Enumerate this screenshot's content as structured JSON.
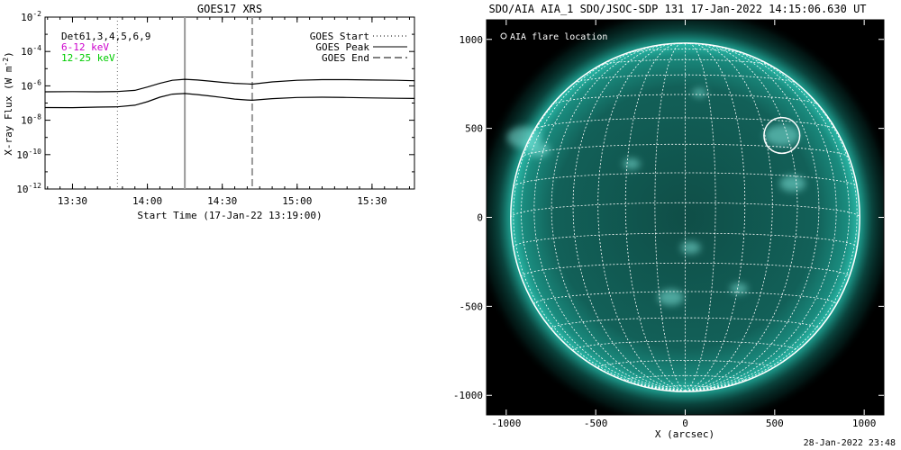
{
  "goes": {
    "title": "GOES17 XRS",
    "ylabel_main": "X-ray Flux (W m",
    "ylabel_sup": "-2",
    "ylabel_close": ")",
    "xlabel": "Start Time (17-Jan-22 13:19:00)",
    "legend_left": [
      {
        "text": "Det61,3,4,5,6,9",
        "color": "#000000"
      },
      {
        "text": "6-12 keV",
        "color": "#cc00cc"
      },
      {
        "text": "12-25 keV",
        "color": "#00cc00"
      }
    ],
    "legend_right": [
      {
        "text": "GOES Start",
        "style": "dotted"
      },
      {
        "text": "GOES Peak",
        "style": "solid"
      },
      {
        "text": "GOES End",
        "style": "dashed"
      }
    ]
  },
  "aia": {
    "title": "SDO/AIA AIA_1 SDO/JSOC-SDP 131 17-Jan-2022 14:15:06.630 UT",
    "xlabel": "X (arcsec)",
    "legend": "AIA flare location",
    "disk_color": "#1a9a8a",
    "background_color": "#000000",
    "grid_color": "#ffffff"
  },
  "timestamp": "28-Jan-2022 23:48",
  "chart_data": [
    {
      "type": "line",
      "title": "GOES17 XRS",
      "xlabel": "Start Time (17-Jan-22 13:19:00)",
      "ylabel": "X-ray Flux (W m^-2)",
      "yscale": "log",
      "ylim": [
        1e-12,
        0.01
      ],
      "xlim": [
        "13:19",
        "15:47"
      ],
      "xticks": [
        "13:30",
        "14:00",
        "14:30",
        "15:00",
        "15:30"
      ],
      "yticks": [
        {
          "base": "10",
          "exp": "-2",
          "value": 0.01
        },
        {
          "base": "10",
          "exp": "-4",
          "value": 0.0001
        },
        {
          "base": "10",
          "exp": "-6",
          "value": 1e-06
        },
        {
          "base": "10",
          "exp": "-8",
          "value": 1e-08
        },
        {
          "base": "10",
          "exp": "-10",
          "value": 1e-10
        },
        {
          "base": "10",
          "exp": "-12",
          "value": 1e-12
        }
      ],
      "markers": [
        {
          "label": "GOES Start",
          "time": "13:48",
          "style": "dotted"
        },
        {
          "label": "GOES Peak",
          "time": "14:15",
          "style": "solid"
        },
        {
          "label": "GOES End",
          "time": "14:42",
          "style": "dashed"
        }
      ],
      "series": [
        {
          "x": [
            "13:19",
            "13:30",
            "13:40",
            "13:48",
            "13:55",
            "14:00",
            "14:05",
            "14:10",
            "14:15",
            "14:20",
            "14:25",
            "14:30",
            "14:35",
            "14:40",
            "14:42",
            "14:50",
            "15:00",
            "15:10",
            "15:20",
            "15:30",
            "15:40",
            "15:47"
          ],
          "values": [
            4.5e-07,
            4.6e-07,
            4.5e-07,
            4.7e-07,
            5.5e-07,
            8.5e-07,
            1.4e-06,
            2.1e-06,
            2.4e-06,
            2.2e-06,
            1.9e-06,
            1.6e-06,
            1.4e-06,
            1.3e-06,
            1.25e-06,
            1.7e-06,
            2.1e-06,
            2.3e-06,
            2.3e-06,
            2.2e-06,
            2.1e-06,
            2e-06
          ]
        },
        {
          "x": [
            "13:19",
            "13:30",
            "13:40",
            "13:48",
            "13:55",
            "14:00",
            "14:05",
            "14:10",
            "14:15",
            "14:20",
            "14:25",
            "14:30",
            "14:35",
            "14:40",
            "14:42",
            "14:50",
            "15:00",
            "15:10",
            "15:20",
            "15:30",
            "15:40",
            "15:47"
          ],
          "values": [
            5.5e-08,
            5.4e-08,
            5.8e-08,
            6e-08,
            7.5e-08,
            1.2e-07,
            2.2e-07,
            3.3e-07,
            3.6e-07,
            3.1e-07,
            2.6e-07,
            2.1e-07,
            1.7e-07,
            1.5e-07,
            1.45e-07,
            1.8e-07,
            2.1e-07,
            2.2e-07,
            2.1e-07,
            2e-07,
            1.9e-07,
            1.85e-07
          ]
        }
      ]
    },
    {
      "type": "scatter",
      "title": "SDO/AIA AIA_1 SDO/JSOC-SDP 131 17-Jan-2022 14:15:06.630 UT",
      "xlabel": "X (arcsec)",
      "xlim": [
        -1110,
        1110
      ],
      "ylim": [
        -1110,
        1110
      ],
      "xticks": [
        "-1000",
        "-500",
        "0",
        "500",
        "1000"
      ],
      "yticks": [
        "1000",
        "500",
        "0",
        "-500",
        "-1000"
      ],
      "xtick_values": [
        -1000,
        -500,
        0,
        500,
        1000
      ],
      "ytick_values": [
        1000,
        500,
        0,
        -500,
        -1000
      ],
      "solar_radius": 975,
      "grid_spacing_deg": 10,
      "b0_deg": -4.8,
      "flare_location": {
        "x": 540,
        "y": 460,
        "radius": 100
      }
    }
  ]
}
